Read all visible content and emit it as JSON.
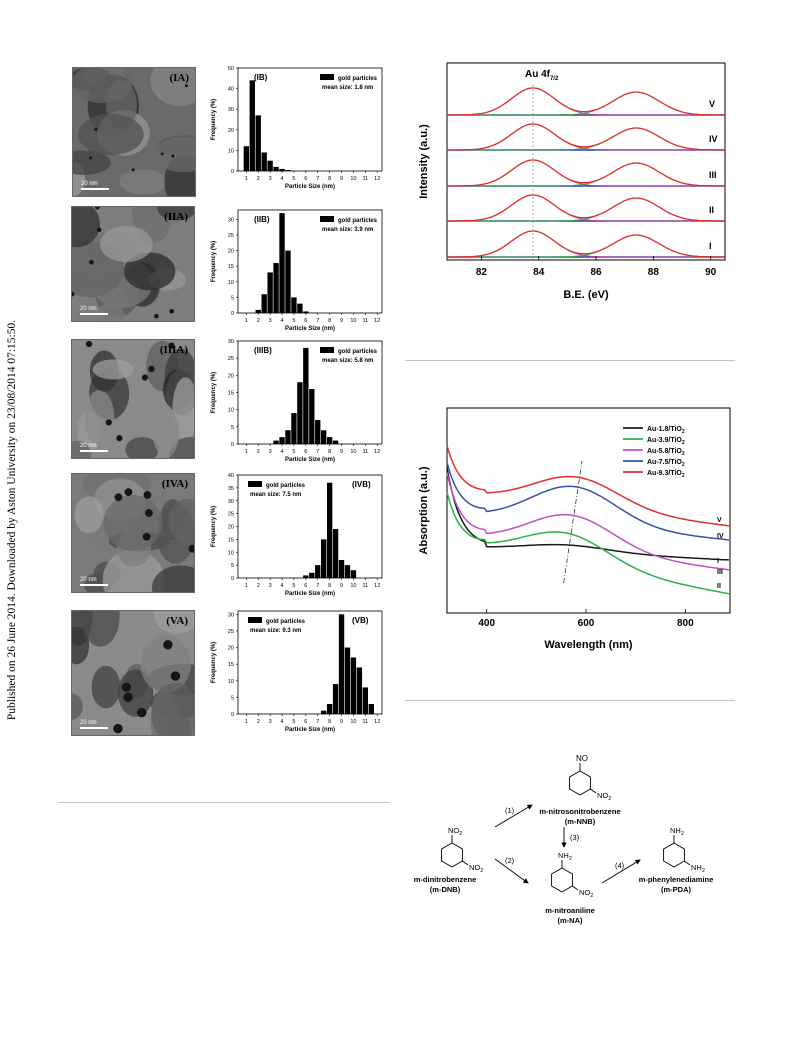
{
  "sidebar_text": "Published on 26 June 2014. Downloaded by Aston University on 23/08/2014 07:15:50.",
  "panels": [
    {
      "tem_label": "(IA)",
      "hist_label": "(IB)",
      "legend": "gold particles",
      "mean": "mean size: 1.8 nm",
      "scale": "20 nm",
      "yticks": [
        0,
        10,
        20,
        30,
        40,
        50
      ],
      "ymax": 50,
      "bars": [
        [
          1,
          12
        ],
        [
          1.5,
          44
        ],
        [
          2,
          27
        ],
        [
          2.5,
          9
        ],
        [
          3,
          5
        ],
        [
          3.5,
          2
        ],
        [
          4,
          1
        ],
        [
          4.5,
          0.5
        ]
      ]
    },
    {
      "tem_label": "(IIA)",
      "hist_label": "(IIB)",
      "legend": "gold particles",
      "mean": "mean size: 3.9 nm",
      "scale": "20 nm",
      "yticks": [
        0,
        5,
        10,
        15,
        20,
        25,
        30
      ],
      "ymax": 33,
      "bars": [
        [
          2,
          1
        ],
        [
          2.5,
          6
        ],
        [
          3,
          13
        ],
        [
          3.5,
          16
        ],
        [
          4,
          32
        ],
        [
          4.5,
          20
        ],
        [
          5,
          5
        ],
        [
          5.5,
          3
        ],
        [
          6,
          0.5
        ]
      ]
    },
    {
      "tem_label": "(IIIA)",
      "hist_label": "(IIIB)",
      "legend": "gold particles",
      "mean": "mean size: 5.8 nm",
      "scale": "20 nm",
      "yticks": [
        0,
        5,
        10,
        15,
        20,
        25,
        30
      ],
      "ymax": 30,
      "bars": [
        [
          3.5,
          1
        ],
        [
          4,
          2
        ],
        [
          4.5,
          4
        ],
        [
          5,
          9
        ],
        [
          5.5,
          18
        ],
        [
          6,
          28
        ],
        [
          6.5,
          16
        ],
        [
          7,
          7
        ],
        [
          7.5,
          4
        ],
        [
          8,
          2
        ],
        [
          8.5,
          1
        ]
      ]
    },
    {
      "tem_label": "(IVA)",
      "hist_label": "(IVB)",
      "legend": "gold particles",
      "mean": "mean size: 7.5 nm",
      "scale": "20 nm",
      "yticks": [
        0,
        5,
        10,
        15,
        20,
        25,
        30,
        35,
        40
      ],
      "ymax": 40,
      "bars": [
        [
          6,
          1
        ],
        [
          6.5,
          2
        ],
        [
          7,
          5
        ],
        [
          7.5,
          15
        ],
        [
          8,
          37
        ],
        [
          8.5,
          19
        ],
        [
          9,
          7
        ],
        [
          9.5,
          5
        ],
        [
          10,
          3
        ]
      ]
    },
    {
      "tem_label": "(VA)",
      "hist_label": "(VB)",
      "legend": "gold particles",
      "mean": "mean size: 9.3 nm",
      "scale": "20 nm",
      "yticks": [
        0,
        5,
        10,
        15,
        20,
        25,
        30
      ],
      "ymax": 31,
      "bars": [
        [
          7.5,
          1
        ],
        [
          8,
          3
        ],
        [
          8.5,
          9
        ],
        [
          9,
          30
        ],
        [
          9.5,
          20
        ],
        [
          10,
          17
        ],
        [
          10.5,
          14
        ],
        [
          11,
          8
        ],
        [
          11.5,
          3
        ]
      ]
    }
  ],
  "hist_xlabel": "Particle Size (nm)",
  "hist_ylabel": "Frequency (%)",
  "hist_xticks": [
    1,
    2,
    3,
    4,
    5,
    6,
    7,
    8,
    9,
    10,
    11,
    12
  ],
  "xps": {
    "title_label": "Au 4f",
    "title_sub": "7/2",
    "ylabel": "Intensity (a.u.)",
    "xlabel": "B.E. (eV)",
    "xticks": [
      82,
      84,
      86,
      88,
      90
    ],
    "xlim": [
      80.8,
      90.5
    ],
    "rows": [
      "V",
      "IV",
      "III",
      "II",
      "I"
    ]
  },
  "uvvis": {
    "ylabel": "Absorption (a.u.)",
    "xlabel": "Wavelength (nm)",
    "xticks": [
      400,
      600,
      800
    ],
    "xlim": [
      320,
      890
    ],
    "legend": [
      {
        "name": "Au-1.8/TiO",
        "sub": "2",
        "color": "#1a1a1a"
      },
      {
        "name": "Au-3.9/TiO",
        "sub": "2",
        "color": "#2bb04a"
      },
      {
        "name": "Au-5.8/TiO",
        "sub": "2",
        "color": "#c24fc2"
      },
      {
        "name": "Au-7.5/TiO",
        "sub": "2",
        "color": "#3b4fa8"
      },
      {
        "name": "Au-9.3/TiO",
        "sub": "2",
        "color": "#e0302a"
      }
    ],
    "curve_labels": [
      "V",
      "IV",
      "I",
      "III",
      "II"
    ]
  },
  "scheme": {
    "nno_group": "NO",
    "no2": "NO",
    "no2_sub": "2",
    "nh2": "NH",
    "nh2_sub": "2",
    "step1": "(1)",
    "step2": "(2)",
    "step3": "(3)",
    "step4": "(4)",
    "nnb_name": "m-nitrosonitrobenzene",
    "nnb_abbr": "(m-NNB)",
    "dnb_name": "m-dinitrobenzene",
    "dnb_abbr": "(m-DNB)",
    "na_name": "m-nitroaniline",
    "na_abbr": "(m-NA)",
    "pda_name": "m-phenylenediamine",
    "pda_abbr": "(m-PDA)"
  }
}
